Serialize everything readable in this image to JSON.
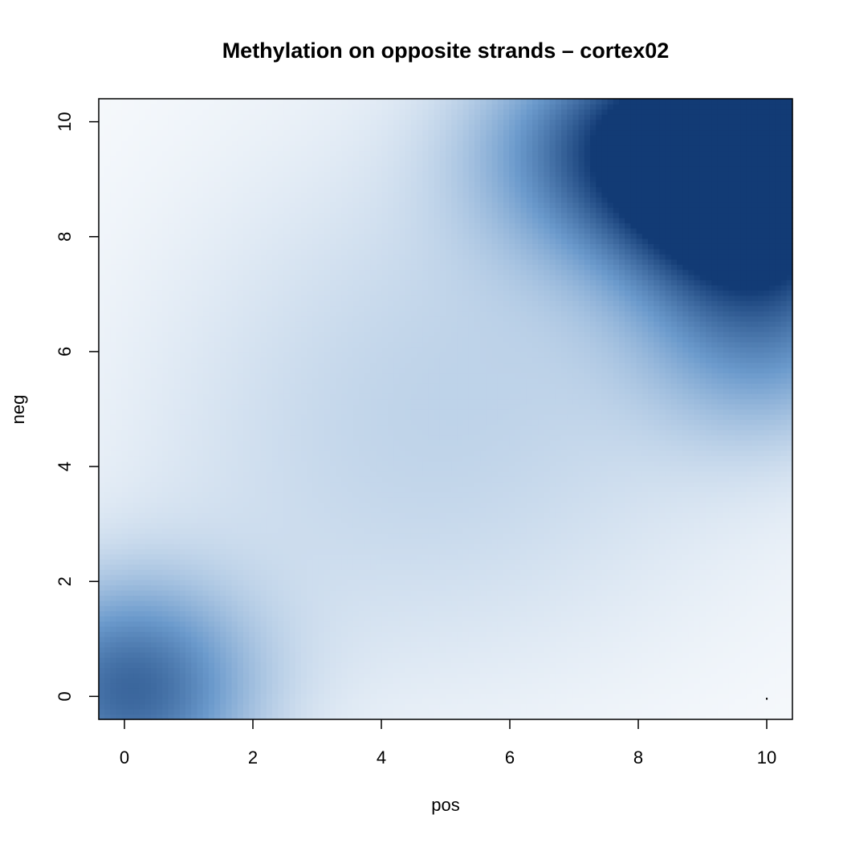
{
  "chart_data": {
    "type": "heatmap",
    "title": "Methylation on opposite strands – cortex02",
    "xlabel": "pos",
    "ylabel": "neg",
    "xlim": [
      -0.4,
      10.4
    ],
    "ylim": [
      -0.4,
      10.4
    ],
    "x_ticks": [
      "0",
      "2",
      "4",
      "6",
      "8",
      "10"
    ],
    "y_ticks": [
      "0",
      "2",
      "4",
      "6",
      "8",
      "10"
    ],
    "color_low": "#ffffff",
    "color_high": "#08306b",
    "grid": false,
    "legend": "none",
    "density_peaks": [
      {
        "x": 10,
        "y": 10,
        "intensity": 1.0
      },
      {
        "x": 9.8,
        "y": 8.3,
        "intensity": 0.7
      },
      {
        "x": 8.5,
        "y": 9.5,
        "intensity": 0.55
      },
      {
        "x": 7,
        "y": 9.6,
        "intensity": 0.35
      },
      {
        "x": 10,
        "y": 6.2,
        "intensity": 0.35
      },
      {
        "x": 0.1,
        "y": 0.1,
        "intensity": 0.7
      },
      {
        "x": 5,
        "y": 5,
        "intensity": 0.15
      }
    ],
    "annotations": [
      {
        "x": 10,
        "y": 0,
        "text": "."
      }
    ]
  }
}
